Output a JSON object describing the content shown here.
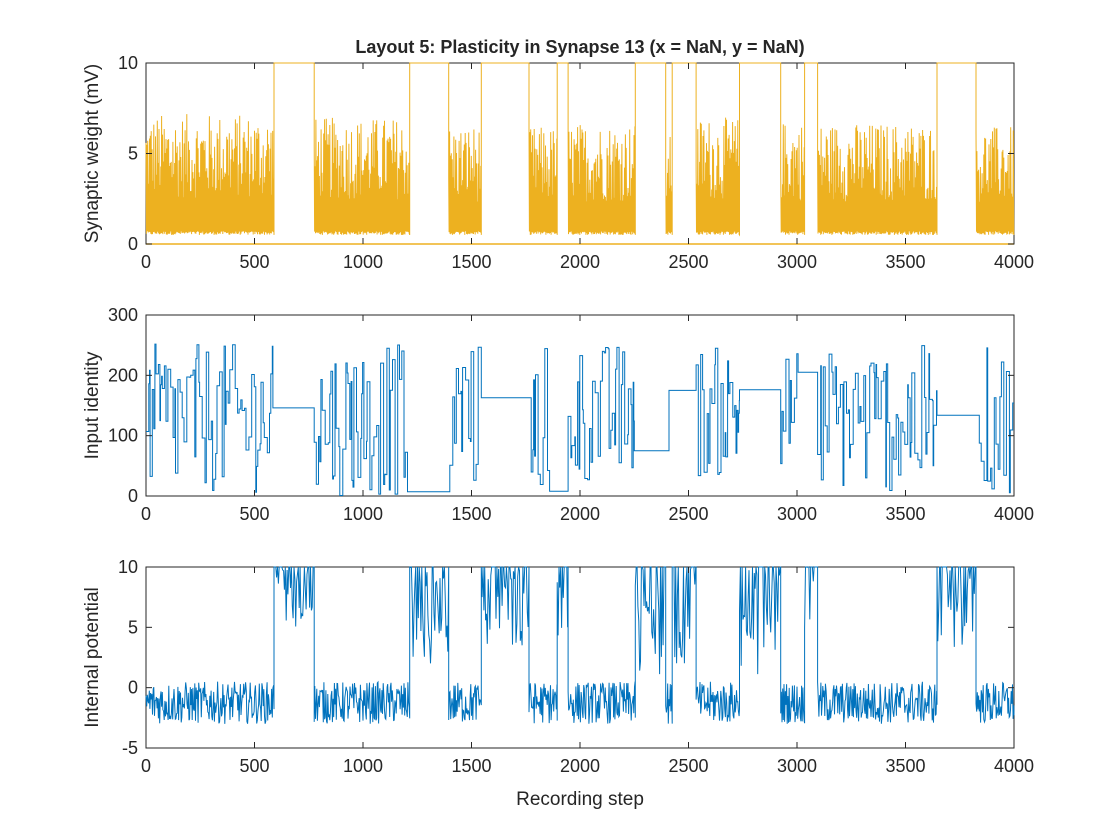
{
  "figure": {
    "title": "Layout 5: Plasticity in Synapse 13 (x = NaN, y = NaN)",
    "xlabel": "Recording step"
  },
  "colors": {
    "weight_series": "#EDB120",
    "input_series": "#0072BD",
    "potential_series": "#0072BD",
    "axes": "#262626",
    "background": "#ffffff"
  },
  "chart_data": [
    {
      "type": "line",
      "title": "Layout 5: Plasticity in Synapse 13 (x = NaN, y = NaN)",
      "xlabel": "",
      "ylabel": "Synaptic weight (mV)",
      "xlim": [
        0,
        4000
      ],
      "ylim": [
        0,
        10
      ],
      "xticks": [
        "0",
        "500",
        "1000",
        "1500",
        "2000",
        "2500",
        "3000",
        "3500",
        "4000"
      ],
      "yticks": [
        "0",
        "5",
        "10"
      ],
      "grid": false,
      "baseline_value": 0,
      "segments": [
        {
          "x": [
            0,
            590
          ],
          "state": "oscillating",
          "low": 0.5,
          "high": 7.2
        },
        {
          "x": [
            590,
            775
          ],
          "state": "saturated",
          "value": 10
        },
        {
          "x": [
            775,
            1215
          ],
          "state": "oscillating",
          "low": 0.5,
          "high": 7.0
        },
        {
          "x": [
            1215,
            1395
          ],
          "state": "saturated",
          "value": 10
        },
        {
          "x": [
            1395,
            1545
          ],
          "state": "oscillating",
          "low": 0.5,
          "high": 6.6
        },
        {
          "x": [
            1545,
            1765
          ],
          "state": "saturated",
          "value": 10
        },
        {
          "x": [
            1765,
            1895
          ],
          "state": "oscillating",
          "low": 0.5,
          "high": 6.5
        },
        {
          "x": [
            1895,
            1945
          ],
          "state": "saturated",
          "value": 10
        },
        {
          "x": [
            1945,
            2255
          ],
          "state": "oscillating",
          "low": 0.5,
          "high": 6.7
        },
        {
          "x": [
            2255,
            2395
          ],
          "state": "saturated",
          "value": 10
        },
        {
          "x": [
            2395,
            2425
          ],
          "state": "oscillating",
          "low": 0.5,
          "high": 6.0
        },
        {
          "x": [
            2425,
            2535
          ],
          "state": "saturated",
          "value": 10
        },
        {
          "x": [
            2535,
            2735
          ],
          "state": "oscillating",
          "low": 0.5,
          "high": 7.0
        },
        {
          "x": [
            2735,
            2925
          ],
          "state": "saturated",
          "value": 10
        },
        {
          "x": [
            2925,
            3035
          ],
          "state": "oscillating",
          "low": 0.5,
          "high": 6.8
        },
        {
          "x": [
            3035,
            3095
          ],
          "state": "saturated",
          "value": 10
        },
        {
          "x": [
            3095,
            3645
          ],
          "state": "oscillating",
          "low": 0.5,
          "high": 6.7
        },
        {
          "x": [
            3645,
            3825
          ],
          "state": "saturated",
          "value": 10
        },
        {
          "x": [
            3825,
            4000
          ],
          "state": "oscillating",
          "low": 0.5,
          "high": 6.5
        }
      ]
    },
    {
      "type": "line",
      "title": "",
      "xlabel": "",
      "ylabel": "Input identity",
      "xlim": [
        0,
        4000
      ],
      "ylim": [
        0,
        300
      ],
      "xticks": [
        "0",
        "500",
        "1000",
        "1500",
        "2000",
        "2500",
        "3000",
        "3500",
        "4000"
      ],
      "yticks": [
        "0",
        "100",
        "200",
        "300"
      ],
      "grid": false,
      "segments": [
        {
          "x": [
            0,
            585
          ],
          "state": "switching",
          "min": 5,
          "max": 252
        },
        {
          "x": [
            585,
            775
          ],
          "state": "constant",
          "value": 146
        },
        {
          "x": [
            775,
            1205
          ],
          "state": "switching",
          "min": 0,
          "max": 253
        },
        {
          "x": [
            1205,
            1400
          ],
          "state": "constant",
          "value": 7
        },
        {
          "x": [
            1400,
            1545
          ],
          "state": "switching",
          "min": 10,
          "max": 255
        },
        {
          "x": [
            1545,
            1775
          ],
          "state": "constant",
          "value": 163
        },
        {
          "x": [
            1775,
            1860
          ],
          "state": "switching",
          "min": 8,
          "max": 253
        },
        {
          "x": [
            1860,
            1945
          ],
          "state": "constant",
          "value": 8
        },
        {
          "x": [
            1945,
            2250
          ],
          "state": "switching",
          "min": 20,
          "max": 253
        },
        {
          "x": [
            2250,
            2410
          ],
          "state": "constant",
          "value": 75
        },
        {
          "x": [
            2410,
            2535
          ],
          "state": "constant",
          "value": 175
        },
        {
          "x": [
            2535,
            2735
          ],
          "state": "switching",
          "min": 30,
          "max": 248
        },
        {
          "x": [
            2735,
            2925
          ],
          "state": "constant",
          "value": 176
        },
        {
          "x": [
            2925,
            3005
          ],
          "state": "switching",
          "min": 50,
          "max": 240
        },
        {
          "x": [
            3005,
            3095
          ],
          "state": "constant",
          "value": 205
        },
        {
          "x": [
            3095,
            3645
          ],
          "state": "switching",
          "min": 5,
          "max": 250
        },
        {
          "x": [
            3645,
            3840
          ],
          "state": "constant",
          "value": 134
        },
        {
          "x": [
            3840,
            4000
          ],
          "state": "switching",
          "min": 5,
          "max": 248
        }
      ]
    },
    {
      "type": "line",
      "title": "",
      "xlabel": "Recording step",
      "ylabel": "Internal potential",
      "xlim": [
        0,
        4000
      ],
      "ylim": [
        -5,
        10
      ],
      "xticks": [
        "0",
        "500",
        "1000",
        "1500",
        "2000",
        "2500",
        "3000",
        "3500",
        "4000"
      ],
      "yticks": [
        "-5",
        "0",
        "5",
        "10"
      ],
      "grid": false,
      "segments": [
        {
          "x": [
            0,
            590
          ],
          "state": "noise",
          "low": -3,
          "high": 0.5
        },
        {
          "x": [
            590,
            775
          ],
          "state": "high",
          "low": 5,
          "high": 10
        },
        {
          "x": [
            775,
            1215
          ],
          "state": "noise",
          "low": -3,
          "high": 0.5
        },
        {
          "x": [
            1215,
            1395
          ],
          "state": "high",
          "low": 2,
          "high": 10
        },
        {
          "x": [
            1395,
            1545
          ],
          "state": "noise",
          "low": -3,
          "high": 0.5
        },
        {
          "x": [
            1545,
            1765
          ],
          "state": "high",
          "low": 3,
          "high": 10
        },
        {
          "x": [
            1765,
            1895
          ],
          "state": "noise",
          "low": -3,
          "high": 0.5
        },
        {
          "x": [
            1895,
            1945
          ],
          "state": "high",
          "low": 4,
          "high": 10
        },
        {
          "x": [
            1945,
            2255
          ],
          "state": "noise",
          "low": -3,
          "high": 0.5
        },
        {
          "x": [
            2255,
            2395
          ],
          "state": "high",
          "low": 1,
          "high": 10
        },
        {
          "x": [
            2395,
            2425
          ],
          "state": "noise",
          "low": -3,
          "high": 0.5
        },
        {
          "x": [
            2425,
            2535
          ],
          "state": "high",
          "low": 2,
          "high": 10
        },
        {
          "x": [
            2535,
            2735
          ],
          "state": "noise",
          "low": -3,
          "high": 0.5
        },
        {
          "x": [
            2735,
            2925
          ],
          "state": "high",
          "low": 1,
          "high": 10
        },
        {
          "x": [
            2925,
            3035
          ],
          "state": "noise",
          "low": -3,
          "high": 0.5
        },
        {
          "x": [
            3035,
            3095
          ],
          "state": "high",
          "low": 4,
          "high": 10
        },
        {
          "x": [
            3095,
            3645
          ],
          "state": "noise",
          "low": -3,
          "high": 0.5
        },
        {
          "x": [
            3645,
            3825
          ],
          "state": "high",
          "low": 3,
          "high": 10
        },
        {
          "x": [
            3825,
            4000
          ],
          "state": "noise",
          "low": -3,
          "high": 0.5
        }
      ]
    }
  ]
}
